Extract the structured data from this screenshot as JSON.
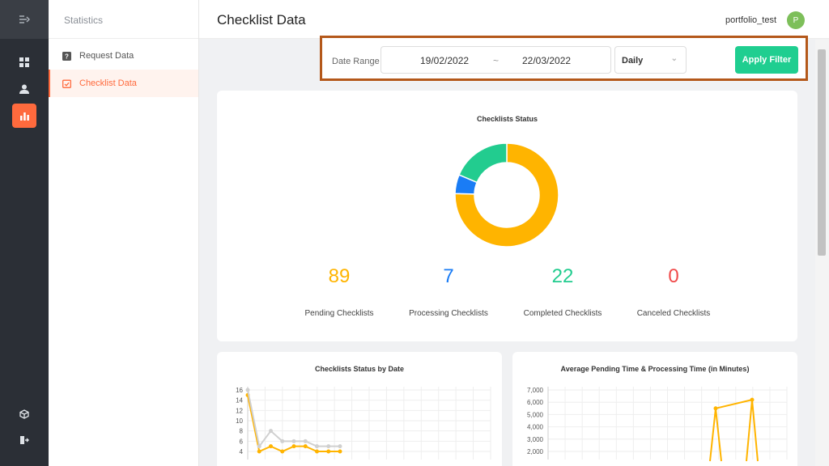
{
  "rail": {
    "icons": [
      "collapse-icon",
      "dashboard-icon",
      "user-icon",
      "statistics-icon",
      "box-icon",
      "logout-icon"
    ],
    "active_color": "#ff6a3d"
  },
  "sidebar": {
    "title": "Statistics",
    "items": [
      {
        "label": "Request Data",
        "icon": "question-icon",
        "active": false
      },
      {
        "label": "Checklist Data",
        "icon": "checklist-icon",
        "active": true
      }
    ]
  },
  "header": {
    "title": "Checklist Data",
    "user": "portfolio_test",
    "avatar_initial": "P"
  },
  "filter": {
    "label": "Date Range",
    "date_from": "19/02/2022",
    "separator": "~",
    "date_to": "22/03/2022",
    "period": "Daily",
    "apply_label": "Apply Filter",
    "apply_color": "#1fce90"
  },
  "status_card": {
    "title": "Checklists Status",
    "stats": [
      {
        "value": "89",
        "label": "Pending Checklists",
        "color": "#ffb400"
      },
      {
        "value": "7",
        "label": "Processing Checklists",
        "color": "#1a7cf5"
      },
      {
        "value": "22",
        "label": "Completed Checklists",
        "color": "#22cc8f"
      },
      {
        "value": "0",
        "label": "Canceled Checklists",
        "color": "#f04a4a"
      }
    ]
  },
  "date_card": {
    "title": "Checklists Status by Date"
  },
  "time_card": {
    "title": "Average Pending Time & Processing Time (in Minutes)"
  },
  "chart_data": [
    {
      "type": "pie",
      "title": "Checklists Status",
      "categories": [
        "Pending Checklists",
        "Processing Checklists",
        "Completed Checklists",
        "Canceled Checklists"
      ],
      "values": [
        89,
        7,
        22,
        0
      ],
      "colors": [
        "#ffb400",
        "#1a7cf5",
        "#22cc8f",
        "#f04a4a"
      ]
    },
    {
      "type": "line",
      "title": "Checklists Status by Date",
      "y_ticks": [
        16,
        14,
        12,
        10,
        8,
        6,
        4
      ],
      "ylim": [
        4,
        16
      ],
      "grid": true,
      "series": [
        {
          "color": "#ffb400",
          "values": [
            15,
            4,
            5,
            4,
            5,
            5,
            4,
            4,
            4
          ]
        },
        {
          "color": "#d0d0d0",
          "values": [
            16,
            5,
            8,
            6,
            6,
            6,
            5,
            5,
            5
          ]
        }
      ]
    },
    {
      "type": "line",
      "title": "Average Pending Time & Processing Time (in Minutes)",
      "y_ticks": [
        "7,000",
        "6,000",
        "5,000",
        "4,000",
        "3,000",
        "2,000"
      ],
      "ylim": [
        2000,
        7000
      ],
      "grid": true,
      "series": [
        {
          "color": "#ffb400",
          "values": [
            5500,
            6200
          ]
        }
      ]
    }
  ]
}
